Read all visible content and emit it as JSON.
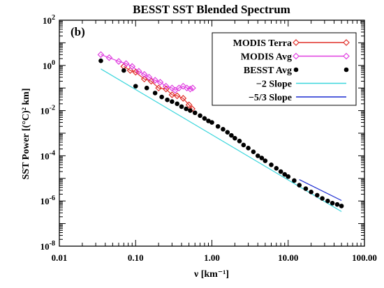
{
  "chart_data": {
    "type": "scatter",
    "title": "BESST SST Blended Spectrum",
    "panel_label": "(b)",
    "xlabel": "ν [km⁻¹]",
    "ylabel": "SST Power [(°C)² km]",
    "x_scale": "log",
    "y_scale": "log",
    "xlim": [
      0.01,
      100
    ],
    "ylim": [
      1e-08,
      100
    ],
    "x_ticks": [
      {
        "value": 0.01,
        "label": "0.01"
      },
      {
        "value": 0.1,
        "label": "0.10"
      },
      {
        "value": 1,
        "label": "1.00"
      },
      {
        "value": 10,
        "label": "10.00"
      },
      {
        "value": 100,
        "label": "100.00"
      }
    ],
    "y_ticks": [
      {
        "value": 1e-08,
        "base": "10",
        "exp": "-8"
      },
      {
        "value": 1e-06,
        "base": "10",
        "exp": "-6"
      },
      {
        "value": 0.0001,
        "base": "10",
        "exp": "-4"
      },
      {
        "value": 0.01,
        "base": "10",
        "exp": "-2"
      },
      {
        "value": 1,
        "base": "10",
        "exp": "0"
      },
      {
        "value": 100,
        "base": "10",
        "exp": "2"
      }
    ],
    "legend_position": "top-right",
    "grid": false,
    "series": [
      {
        "name": "MODIS Terra",
        "color": "#e0302a",
        "marker": "open-diamond",
        "line": true,
        "x": [
          0.07,
          0.085,
          0.1,
          0.13,
          0.16,
          0.2,
          0.25,
          0.3,
          0.35,
          0.42,
          0.5,
          0.55
        ],
        "y": [
          0.9,
          0.6,
          0.5,
          0.25,
          0.2,
          0.1,
          0.09,
          0.05,
          0.045,
          0.035,
          0.018,
          0.012
        ]
      },
      {
        "name": "MODIS Avg",
        "color": "#e040e0",
        "marker": "open-diamond",
        "line": true,
        "x": [
          0.035,
          0.045,
          0.06,
          0.075,
          0.09,
          0.11,
          0.13,
          0.15,
          0.18,
          0.21,
          0.25,
          0.3,
          0.33,
          0.37,
          0.42,
          0.47,
          0.52,
          0.56
        ],
        "y": [
          3,
          2.2,
          1.5,
          1.2,
          0.9,
          0.55,
          0.4,
          0.3,
          0.22,
          0.18,
          0.12,
          0.1,
          0.08,
          0.1,
          0.12,
          0.1,
          0.09,
          0.1
        ]
      },
      {
        "name": "BESST Avg",
        "color": "#000000",
        "marker": "filled-circle",
        "line": false,
        "x": [
          0.035,
          0.07,
          0.1,
          0.14,
          0.18,
          0.22,
          0.26,
          0.3,
          0.35,
          0.4,
          0.46,
          0.52,
          0.6,
          0.7,
          0.8,
          0.9,
          1.0,
          1.2,
          1.4,
          1.6,
          1.8,
          2.0,
          2.3,
          2.6,
          3.0,
          3.5,
          4.0,
          4.5,
          5.0,
          6.0,
          7.0,
          8.0,
          9.0,
          10.0,
          12.0,
          14.0,
          17.0,
          20.0,
          24.0,
          28.0,
          33.0,
          38.0,
          44.0,
          50.0
        ],
        "y": [
          1.6,
          0.6,
          0.12,
          0.1,
          0.06,
          0.04,
          0.03,
          0.025,
          0.02,
          0.015,
          0.012,
          0.01,
          0.008,
          0.006,
          0.0045,
          0.0035,
          0.003,
          0.002,
          0.0015,
          0.0011,
          0.0008,
          0.0006,
          0.00045,
          0.0003,
          0.00022,
          0.00015,
          0.0001,
          8e-05,
          6e-05,
          4e-05,
          2.8e-05,
          2e-05,
          1.5e-05,
          1.2e-05,
          8e-06,
          5e-06,
          3.5e-06,
          2.5e-06,
          1.8e-06,
          1.3e-06,
          1e-06,
          8e-07,
          7e-07,
          6e-07
        ]
      },
      {
        "name": "−2 Slope",
        "color": "#3ad6dc",
        "marker": "none",
        "line": true,
        "x": [
          0.035,
          50
        ],
        "y": [
          0.7,
          3.4e-07
        ]
      },
      {
        "name": "−5/3 Slope",
        "color": "#1a2ad0",
        "marker": "none",
        "line": true,
        "x": [
          14,
          50
        ],
        "y": [
          8.8e-06,
          1.05e-06
        ]
      }
    ]
  }
}
